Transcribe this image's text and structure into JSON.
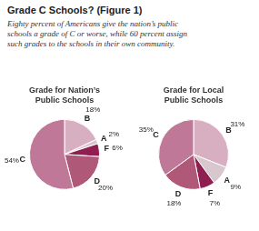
{
  "title": "Grade C Schools? (Figure 1)",
  "subtitle": "Eighty percent of Americans give the nation’s public\nschools a grade of C or worse, while 60 percent assign\nsuch grades to the schools in their own community.",
  "chart_data": [
    {
      "type": "pie",
      "title": "Grade for Nation’s\nPublic Schools",
      "categories": [
        "B",
        "A",
        "F",
        "D",
        "C"
      ],
      "values": [
        18,
        2,
        6,
        20,
        54
      ],
      "value_labels": [
        "18%",
        "2%",
        "6%",
        "20%",
        "54%"
      ],
      "colors": [
        "#d8afc0",
        "#d8c8ce",
        "#8e1f50",
        "#b05878",
        "#c07898"
      ],
      "data_labels": true
    },
    {
      "type": "pie",
      "title": "Grade for Local\nPublic Schools",
      "categories": [
        "B",
        "A",
        "F",
        "D",
        "C"
      ],
      "values": [
        31,
        9,
        7,
        18,
        35
      ],
      "value_labels": [
        "31%",
        "9%",
        "7%",
        "18%",
        "35%"
      ],
      "colors": [
        "#d8afc0",
        "#d8c8ce",
        "#8e1f50",
        "#b05878",
        "#c07898"
      ],
      "data_labels": true
    }
  ]
}
